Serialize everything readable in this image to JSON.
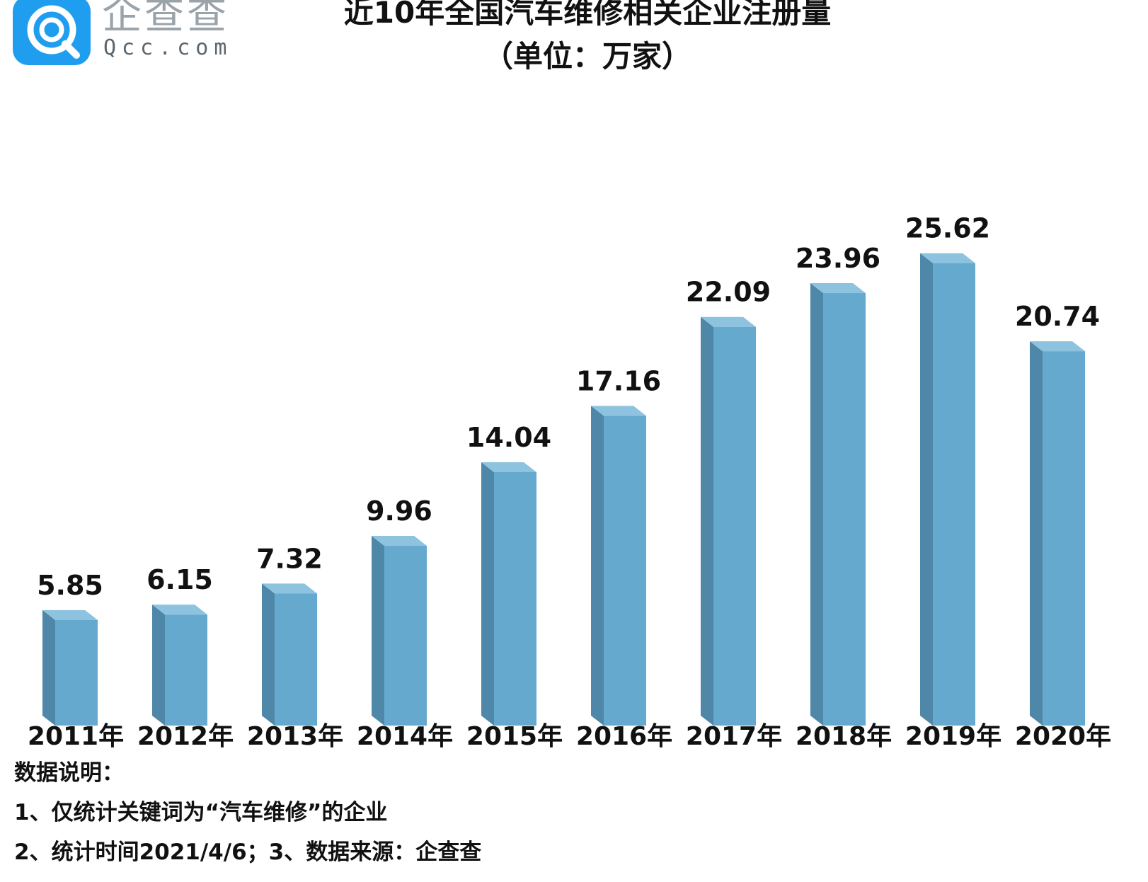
{
  "logo": {
    "name_cn": "企查查",
    "name_en": "Qcc.com"
  },
  "colors": {
    "bar_front": "#66a9cf",
    "bar_side": "#4e87a8",
    "bar_top": "#8ec3df",
    "brand": "#1f9ef0"
  },
  "chart_data": {
    "type": "bar",
    "title": "近10年全国汽车维修相关企业注册量",
    "subtitle": "（单位：万家）",
    "categories": [
      "2011年",
      "2012年",
      "2013年",
      "2014年",
      "2015年",
      "2016年",
      "2017年",
      "2018年",
      "2019年",
      "2020年"
    ],
    "values": [
      5.85,
      6.15,
      7.32,
      9.96,
      14.04,
      17.16,
      22.09,
      23.96,
      25.62,
      20.74
    ],
    "value_labels": [
      "5.85",
      "6.15",
      "7.32",
      "9.96",
      "14.04",
      "17.16",
      "22.09",
      "23.96",
      "25.62",
      "20.74"
    ],
    "style": "3d-column",
    "grid": false,
    "legend": "none",
    "ylim": [
      0,
      28
    ]
  },
  "notes": {
    "heading": "数据说明：",
    "line1": "1、仅统计关键词为“汽车维修”的企业",
    "line2": "2、统计时间2021/4/6；3、数据来源：企查查"
  }
}
